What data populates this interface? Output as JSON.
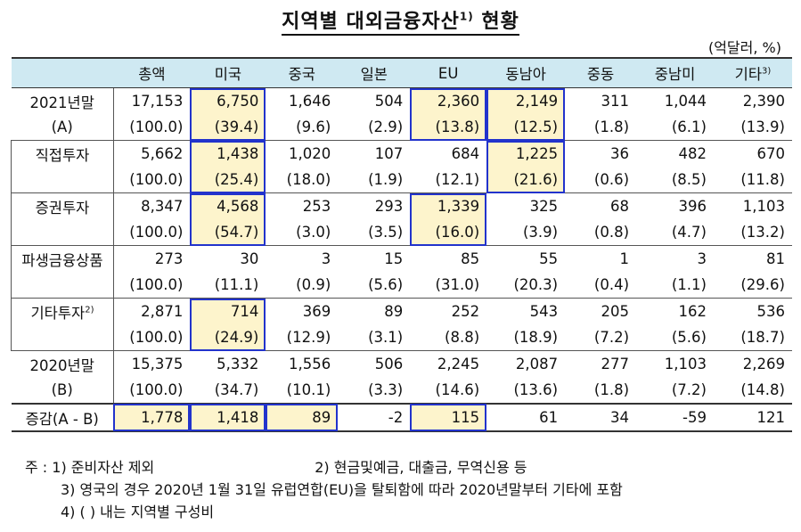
{
  "title": "지역별 대외금융자산",
  "title_sup": "1)",
  "title_suffix": "현황",
  "unit": "(억달러, %)",
  "columns": [
    "",
    "총액",
    "미국",
    "중국",
    "일본",
    "EU",
    "동남아",
    "중동",
    "중남미",
    "기타"
  ],
  "col_last_sup": "3)",
  "rows": [
    {
      "label": "2021년말",
      "sub": "(A)",
      "vals": [
        "17,153",
        "6,750",
        "1,646",
        "504",
        "2,360",
        "2,149",
        "311",
        "1,044",
        "2,390"
      ],
      "pct": [
        "(100.0)",
        "(39.4)",
        "(9.6)",
        "(2.9)",
        "(13.8)",
        "(12.5)",
        "(1.8)",
        "(6.1)",
        "(13.9)"
      ]
    },
    {
      "label": "직접투자",
      "vals": [
        "5,662",
        "1,438",
        "1,020",
        "107",
        "684",
        "1,225",
        "36",
        "482",
        "670"
      ],
      "pct": [
        "(100.0)",
        "(25.4)",
        "(18.0)",
        "(1.9)",
        "(12.1)",
        "(21.6)",
        "(0.6)",
        "(8.5)",
        "(11.8)"
      ]
    },
    {
      "label": "증권투자",
      "vals": [
        "8,347",
        "4,568",
        "253",
        "293",
        "1,339",
        "325",
        "68",
        "396",
        "1,103"
      ],
      "pct": [
        "(100.0)",
        "(54.7)",
        "(3.0)",
        "(3.5)",
        "(16.0)",
        "(3.9)",
        "(0.8)",
        "(4.7)",
        "(13.2)"
      ]
    },
    {
      "label": "파생금융상품",
      "vals": [
        "273",
        "30",
        "3",
        "15",
        "85",
        "55",
        "1",
        "3",
        "81"
      ],
      "pct": [
        "(100.0)",
        "(11.1)",
        "(0.9)",
        "(5.6)",
        "(31.0)",
        "(20.3)",
        "(0.4)",
        "(1.1)",
        "(29.6)"
      ]
    },
    {
      "label": "기타투자",
      "label_sup": "2)",
      "vals": [
        "2,871",
        "714",
        "369",
        "89",
        "252",
        "543",
        "205",
        "162",
        "536"
      ],
      "pct": [
        "(100.0)",
        "(24.9)",
        "(12.9)",
        "(3.1)",
        "(8.8)",
        "(18.9)",
        "(7.2)",
        "(5.6)",
        "(18.7)"
      ]
    },
    {
      "label": "2020년말",
      "sub": "(B)",
      "vals": [
        "15,375",
        "5,332",
        "1,556",
        "506",
        "2,245",
        "2,087",
        "277",
        "1,103",
        "2,269"
      ],
      "pct": [
        "(100.0)",
        "(34.7)",
        "(10.1)",
        "(3.3)",
        "(14.6)",
        "(13.6)",
        "(1.8)",
        "(7.2)",
        "(14.8)"
      ]
    }
  ],
  "change_row": {
    "label": "증감(A - B)",
    "vals": [
      "1,778",
      "1,418",
      "89",
      "-2",
      "115",
      "61",
      "34",
      "-59",
      "121"
    ]
  },
  "highlight_color": "#fdf4cc",
  "box_color": "#2233cc",
  "header_bg": "#cfe9f2",
  "notes": {
    "prefix": "주 :",
    "n1": "1) 준비자산 제외",
    "n2": "2) 현금및예금, 대출금, 무역신용 등",
    "n3": "3) 영국의 경우 2020년 1월 31일 유럽연합(EU)을 탈퇴함에 따라 2020년말부터 기타에 포함",
    "n4": "4) (   ) 내는 지역별 구성비"
  }
}
